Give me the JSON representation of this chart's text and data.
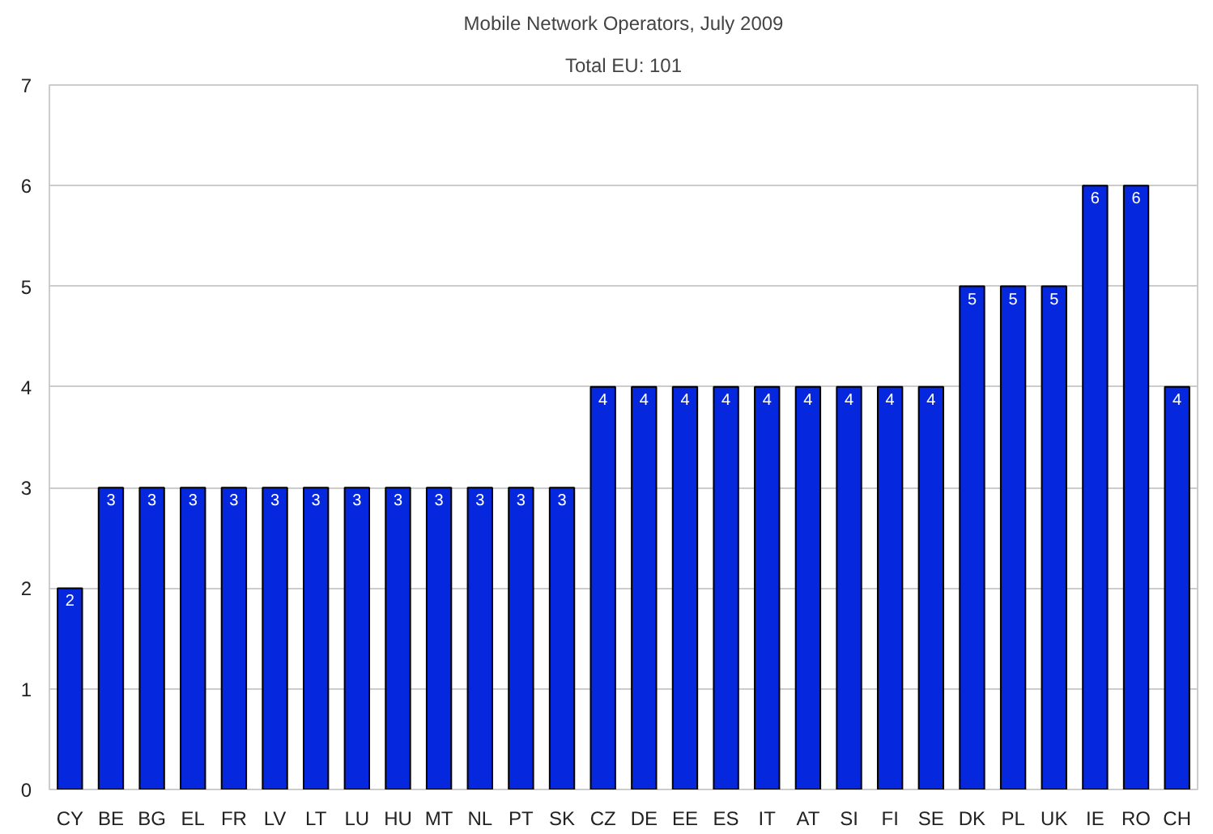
{
  "chart_data": {
    "type": "bar",
    "title": "Mobile Network Operators, July 2009",
    "subtitle": "Total EU: 101",
    "categories": [
      "CY",
      "BE",
      "BG",
      "EL",
      "FR",
      "LV",
      "LT",
      "LU",
      "HU",
      "MT",
      "NL",
      "PT",
      "SK",
      "CZ",
      "DE",
      "EE",
      "ES",
      "IT",
      "AT",
      "SI",
      "FI",
      "SE",
      "DK",
      "PL",
      "UK",
      "IE",
      "RO",
      "CH"
    ],
    "values": [
      2,
      3,
      3,
      3,
      3,
      3,
      3,
      3,
      3,
      3,
      3,
      3,
      3,
      4,
      4,
      4,
      4,
      4,
      4,
      4,
      4,
      4,
      5,
      5,
      5,
      6,
      6,
      4
    ],
    "color": "#0527dd",
    "ylim": [
      0,
      7
    ],
    "yticks": [
      0,
      1,
      2,
      3,
      4,
      5,
      6,
      7
    ],
    "grid": "y",
    "data_labels": true
  }
}
